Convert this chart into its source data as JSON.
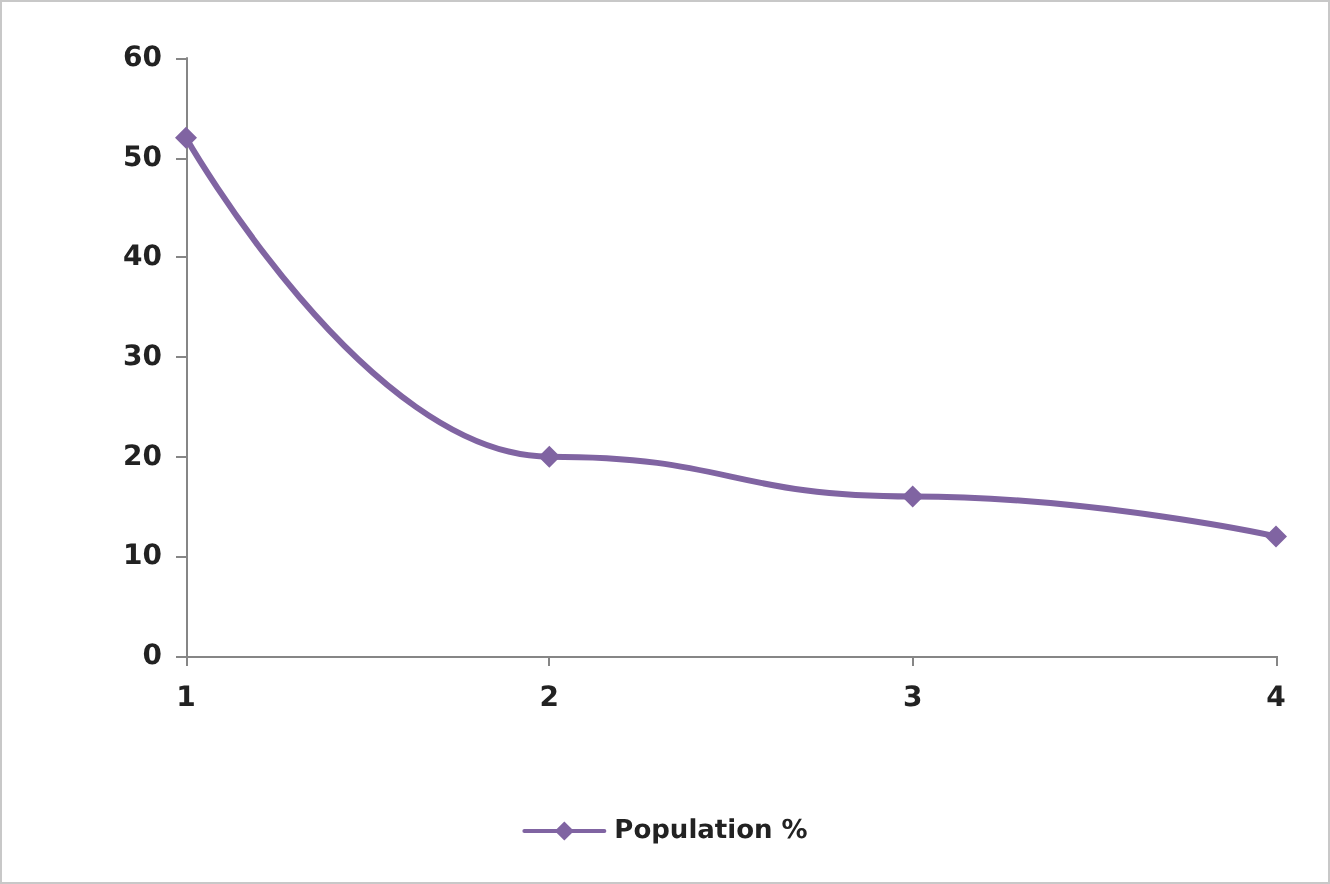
{
  "chart_data": {
    "type": "line",
    "categories": [
      "1",
      "2",
      "3",
      "4"
    ],
    "series": [
      {
        "name": "Population %",
        "color": "#8064a2",
        "values": [
          52,
          20,
          16,
          12
        ]
      }
    ],
    "ylim": [
      0,
      60
    ],
    "yticks": [
      0,
      10,
      20,
      30,
      40,
      50,
      60
    ],
    "grid": false,
    "legend": "bottom",
    "marker": "diamond",
    "line_style": "solid"
  }
}
